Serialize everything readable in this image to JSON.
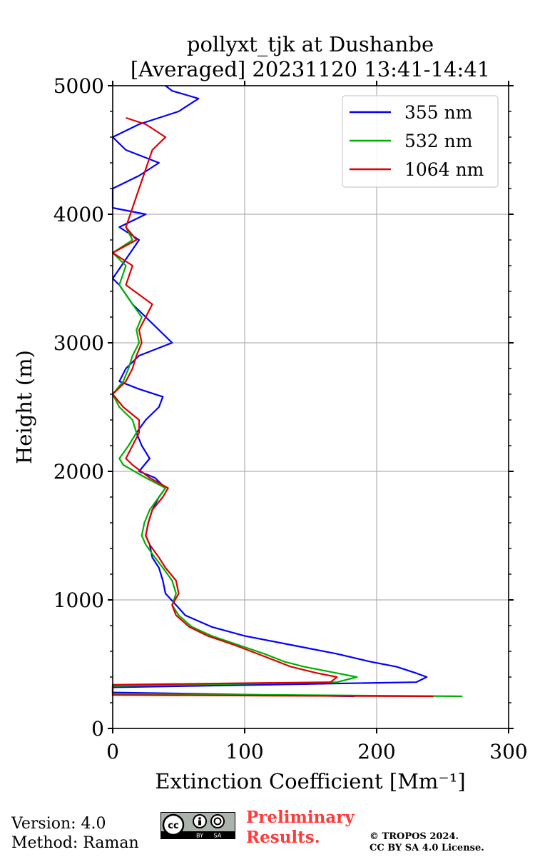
{
  "chart_data": {
    "type": "line",
    "title": "pollyxt_tjk at Dushanbe",
    "subtitle": "[Averaged] 20231120 13:41-14:41",
    "xlabel": "Extinction Coefficient [Mm⁻¹]",
    "ylabel": "Height (m)",
    "xlim": [
      0,
      300
    ],
    "ylim": [
      0,
      5000
    ],
    "xticks": [
      "0",
      "100",
      "200",
      "300"
    ],
    "yticks": [
      "0",
      "1000",
      "2000",
      "3000",
      "4000",
      "5000"
    ],
    "xtick_values": [
      0,
      100,
      200,
      300
    ],
    "ytick_values": [
      0,
      1000,
      2000,
      3000,
      4000,
      5000
    ],
    "grid": true,
    "legend_position": "top-right",
    "series": [
      {
        "name": "355 nm",
        "color": "#0000ff",
        "points": [
          [
            183,
            250
          ],
          [
            0,
            280
          ],
          [
            0,
            320
          ],
          [
            230,
            360
          ],
          [
            238,
            400
          ],
          [
            230,
            430
          ],
          [
            215,
            480
          ],
          [
            195,
            520
          ],
          [
            170,
            580
          ],
          [
            135,
            650
          ],
          [
            100,
            720
          ],
          [
            75,
            790
          ],
          [
            55,
            880
          ],
          [
            48,
            960
          ],
          [
            40,
            1050
          ],
          [
            38,
            1150
          ],
          [
            35,
            1250
          ],
          [
            30,
            1330
          ],
          [
            28,
            1430
          ],
          [
            25,
            1500
          ],
          [
            27,
            1600
          ],
          [
            30,
            1700
          ],
          [
            35,
            1800
          ],
          [
            40,
            1870
          ],
          [
            32,
            1950
          ],
          [
            20,
            2000
          ],
          [
            28,
            2100
          ],
          [
            22,
            2200
          ],
          [
            18,
            2300
          ],
          [
            25,
            2400
          ],
          [
            35,
            2500
          ],
          [
            38,
            2580
          ],
          [
            20,
            2640
          ],
          [
            5,
            2700
          ],
          [
            10,
            2800
          ],
          [
            20,
            2900
          ],
          [
            45,
            3000
          ],
          [
            35,
            3100
          ],
          [
            25,
            3200
          ],
          [
            15,
            3300
          ],
          [
            5,
            3450
          ],
          [
            0,
            3500
          ],
          [
            10,
            3650
          ],
          [
            20,
            3800
          ],
          [
            5,
            3900
          ],
          [
            25,
            4000
          ],
          [
            0,
            4050
          ],
          [
            0,
            4200
          ],
          [
            20,
            4300
          ],
          [
            35,
            4400
          ],
          [
            10,
            4500
          ],
          [
            0,
            4600
          ],
          [
            20,
            4700
          ],
          [
            50,
            4800
          ],
          [
            65,
            4900
          ],
          [
            45,
            4960
          ],
          [
            40,
            5000
          ]
        ]
      },
      {
        "name": "532 nm",
        "color": "#00b000",
        "points": [
          [
            265,
            250
          ],
          [
            0,
            270
          ],
          [
            0,
            330
          ],
          [
            170,
            360
          ],
          [
            185,
            400
          ],
          [
            170,
            430
          ],
          [
            145,
            480
          ],
          [
            130,
            520
          ],
          [
            115,
            580
          ],
          [
            95,
            650
          ],
          [
            75,
            720
          ],
          [
            60,
            790
          ],
          [
            50,
            880
          ],
          [
            45,
            960
          ],
          [
            48,
            1050
          ],
          [
            45,
            1150
          ],
          [
            38,
            1250
          ],
          [
            32,
            1330
          ],
          [
            25,
            1430
          ],
          [
            22,
            1500
          ],
          [
            24,
            1600
          ],
          [
            28,
            1700
          ],
          [
            35,
            1800
          ],
          [
            40,
            1870
          ],
          [
            25,
            1950
          ],
          [
            8,
            2050
          ],
          [
            5,
            2100
          ],
          [
            12,
            2200
          ],
          [
            18,
            2300
          ],
          [
            15,
            2400
          ],
          [
            5,
            2500
          ],
          [
            0,
            2600
          ],
          [
            8,
            2700
          ],
          [
            12,
            2800
          ],
          [
            15,
            2900
          ],
          [
            20,
            3000
          ],
          [
            18,
            3100
          ],
          [
            22,
            3200
          ],
          [
            15,
            3300
          ],
          [
            5,
            3450
          ],
          [
            10,
            3600
          ],
          [
            0,
            3700
          ],
          [
            15,
            3800
          ],
          [
            10,
            3900
          ]
        ]
      },
      {
        "name": "1064 nm",
        "color": "#dd0000",
        "points": [
          [
            243,
            250
          ],
          [
            0,
            260
          ],
          [
            0,
            340
          ],
          [
            165,
            360
          ],
          [
            170,
            400
          ],
          [
            155,
            430
          ],
          [
            135,
            480
          ],
          [
            125,
            520
          ],
          [
            110,
            580
          ],
          [
            92,
            650
          ],
          [
            72,
            720
          ],
          [
            58,
            790
          ],
          [
            48,
            880
          ],
          [
            45,
            960
          ],
          [
            50,
            1050
          ],
          [
            48,
            1150
          ],
          [
            40,
            1250
          ],
          [
            35,
            1330
          ],
          [
            28,
            1430
          ],
          [
            25,
            1500
          ],
          [
            27,
            1600
          ],
          [
            30,
            1700
          ],
          [
            38,
            1800
          ],
          [
            42,
            1870
          ],
          [
            28,
            1950
          ],
          [
            15,
            2050
          ],
          [
            10,
            2100
          ],
          [
            15,
            2200
          ],
          [
            20,
            2300
          ],
          [
            20,
            2400
          ],
          [
            8,
            2500
          ],
          [
            0,
            2600
          ],
          [
            10,
            2700
          ],
          [
            15,
            2800
          ],
          [
            18,
            2900
          ],
          [
            22,
            3000
          ],
          [
            20,
            3100
          ],
          [
            25,
            3200
          ],
          [
            30,
            3300
          ],
          [
            10,
            3450
          ],
          [
            15,
            3600
          ],
          [
            0,
            3700
          ],
          [
            18,
            3800
          ],
          [
            10,
            3900
          ],
          [
            30,
            4500
          ],
          [
            40,
            4600
          ],
          [
            25,
            4700
          ],
          [
            10,
            4750
          ]
        ]
      }
    ]
  },
  "footer": {
    "version": "Version: 4.0",
    "method": "Method: Raman",
    "preliminary_line1": "Preliminary",
    "preliminary_line2": "Results.",
    "copyright_line1": "© TROPOS 2024.",
    "copyright_line2": "CC BY SA 4.0 License.",
    "license_badge": "cc-by-sa-badge",
    "license_badge_cc": "cc",
    "license_badge_by": "BY",
    "license_badge_sa": "SA"
  }
}
